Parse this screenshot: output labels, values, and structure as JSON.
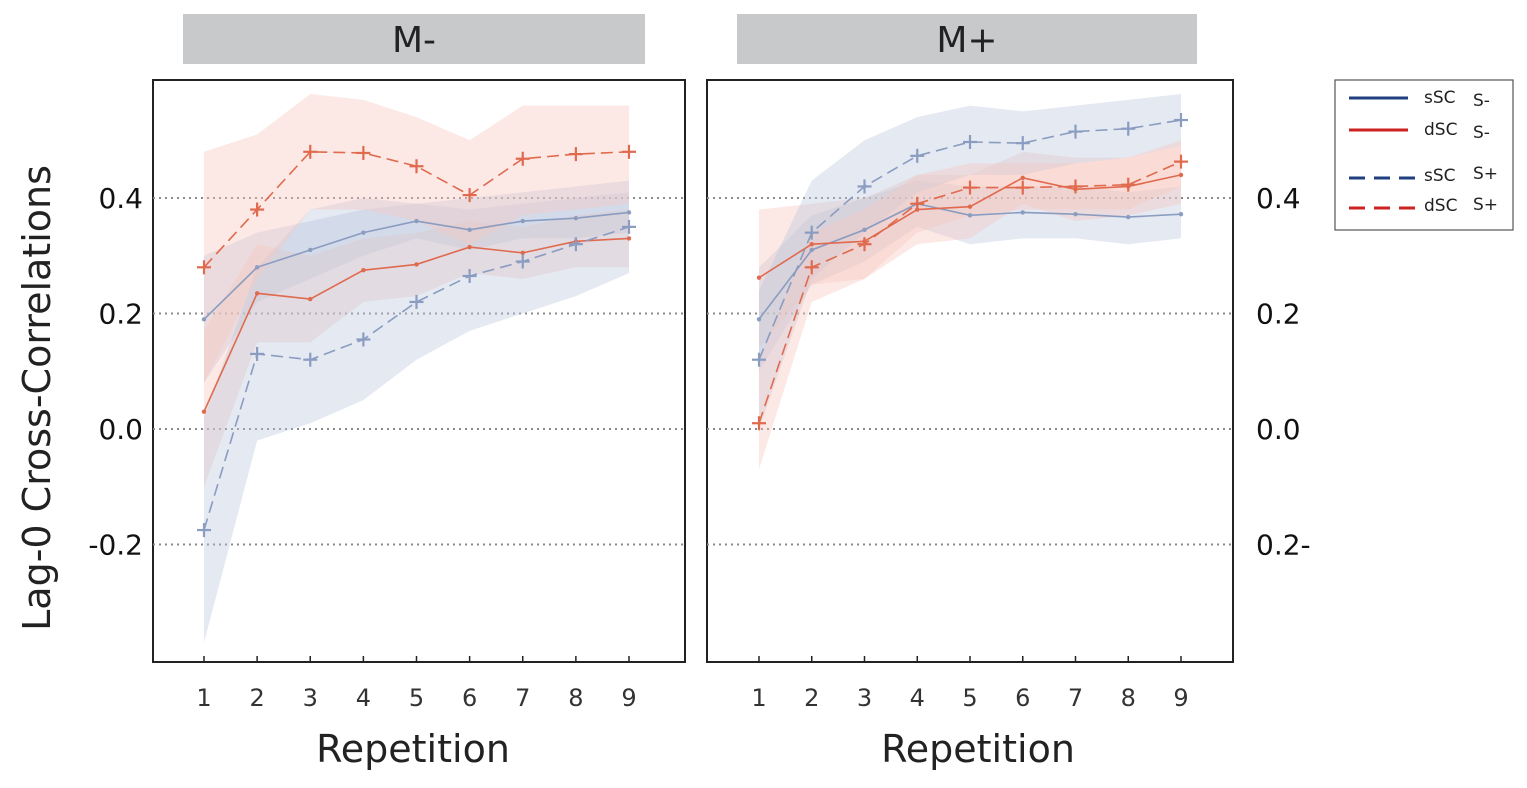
{
  "chart_data": {
    "type": "line",
    "ylabel": "Lag-0 Cross-Correlations",
    "xlabel": "Repetition",
    "x": [
      1,
      2,
      3,
      4,
      5,
      6,
      7,
      8,
      9
    ],
    "ylim": [
      -0.4,
      0.61
    ],
    "yticks_left": [
      "0.4",
      "0.2",
      "0.0",
      "-0.2"
    ],
    "yticks_right": [
      "0.4",
      "0.2",
      "0.0",
      "0.2-"
    ],
    "ytick_values": [
      0.4,
      0.2,
      0.0,
      -0.2
    ],
    "colors": {
      "ssc": "#8a9cc0",
      "dsc": "#e06a4e",
      "ssc_band": "#b8c6dc",
      "dsc_band": "#f8c6bd",
      "legend_ssc": "#1f3f80",
      "legend_dsc": "#cc2222",
      "strip": "#c8c9cb"
    },
    "legend": [
      {
        "name": "sSC",
        "cond": "S-",
        "style": "solid",
        "color": "ssc"
      },
      {
        "name": "dSC",
        "cond": "S-",
        "style": "solid",
        "color": "dsc"
      },
      {
        "name": "sSC",
        "cond": "S+",
        "style": "dashed",
        "color": "ssc"
      },
      {
        "name": "dSC",
        "cond": "S+",
        "style": "dashed",
        "color": "dsc"
      }
    ],
    "panels": [
      {
        "title": "M-",
        "series": [
          {
            "name": "sSC S-",
            "color": "ssc",
            "dashed": false,
            "values": [
              0.19,
              0.28,
              0.31,
              0.34,
              0.36,
              0.345,
              0.36,
              0.365,
              0.375
            ],
            "upper": [
              0.3,
              0.34,
              0.36,
              0.38,
              0.39,
              0.38,
              0.39,
              0.4,
              0.41
            ],
            "lower": [
              0.08,
              0.22,
              0.26,
              0.3,
              0.33,
              0.31,
              0.33,
              0.33,
              0.34
            ]
          },
          {
            "name": "dSC S-",
            "color": "dsc",
            "dashed": false,
            "values": [
              0.03,
              0.235,
              0.225,
              0.275,
              0.285,
              0.315,
              0.305,
              0.325,
              0.33
            ],
            "upper": [
              0.17,
              0.32,
              0.3,
              0.33,
              0.34,
              0.36,
              0.35,
              0.37,
              0.38
            ],
            "lower": [
              -0.1,
              0.15,
              0.15,
              0.22,
              0.23,
              0.27,
              0.26,
              0.28,
              0.28
            ]
          },
          {
            "name": "sSC S+",
            "color": "ssc",
            "dashed": true,
            "values": [
              -0.175,
              0.13,
              0.12,
              0.155,
              0.22,
              0.265,
              0.29,
              0.32,
              0.35
            ],
            "upper": [
              0.02,
              0.28,
              0.38,
              0.4,
              0.39,
              0.4,
              0.41,
              0.42,
              0.43
            ],
            "lower": [
              -0.37,
              -0.02,
              0.01,
              0.05,
              0.12,
              0.17,
              0.2,
              0.23,
              0.27
            ]
          },
          {
            "name": "dSC S+",
            "color": "dsc",
            "dashed": true,
            "values": [
              0.28,
              0.38,
              0.48,
              0.478,
              0.455,
              0.405,
              0.468,
              0.476,
              0.48
            ],
            "upper": [
              0.48,
              0.51,
              0.58,
              0.57,
              0.54,
              0.5,
              0.56,
              0.56,
              0.56
            ],
            "lower": [
              0.08,
              0.26,
              0.38,
              0.38,
              0.36,
              0.32,
              0.37,
              0.38,
              0.39
            ]
          }
        ]
      },
      {
        "title": "M+",
        "series": [
          {
            "name": "sSC S-",
            "color": "ssc",
            "dashed": false,
            "values": [
              0.19,
              0.31,
              0.345,
              0.39,
              0.37,
              0.375,
              0.372,
              0.367,
              0.372
            ],
            "upper": [
              0.28,
              0.37,
              0.4,
              0.43,
              0.42,
              0.42,
              0.42,
              0.41,
              0.42
            ],
            "lower": [
              0.1,
              0.25,
              0.29,
              0.35,
              0.32,
              0.33,
              0.33,
              0.32,
              0.33
            ]
          },
          {
            "name": "dSC S-",
            "color": "dsc",
            "dashed": false,
            "values": [
              0.262,
              0.32,
              0.325,
              0.38,
              0.385,
              0.435,
              0.415,
              0.42,
              0.44
            ],
            "upper": [
              0.38,
              0.39,
              0.4,
              0.44,
              0.44,
              0.48,
              0.47,
              0.47,
              0.49
            ],
            "lower": [
              0.14,
              0.25,
              0.26,
              0.32,
              0.33,
              0.39,
              0.36,
              0.37,
              0.39
            ]
          },
          {
            "name": "sSC S+",
            "color": "ssc",
            "dashed": true,
            "values": [
              0.12,
              0.34,
              0.42,
              0.473,
              0.497,
              0.495,
              0.515,
              0.52,
              0.535
            ],
            "upper": [
              0.24,
              0.43,
              0.5,
              0.54,
              0.56,
              0.55,
              0.56,
              0.57,
              0.58
            ],
            "lower": [
              0.0,
              0.26,
              0.34,
              0.41,
              0.44,
              0.44,
              0.46,
              0.47,
              0.49
            ]
          },
          {
            "name": "dSC S+",
            "color": "dsc",
            "dashed": true,
            "values": [
              0.01,
              0.28,
              0.32,
              0.39,
              0.418,
              0.418,
              0.42,
              0.423,
              0.463
            ],
            "upper": [
              0.12,
              0.34,
              0.38,
              0.44,
              0.46,
              0.46,
              0.46,
              0.47,
              0.5
            ],
            "lower": [
              -0.07,
              0.22,
              0.26,
              0.34,
              0.37,
              0.38,
              0.38,
              0.38,
              0.42
            ]
          }
        ]
      }
    ]
  }
}
